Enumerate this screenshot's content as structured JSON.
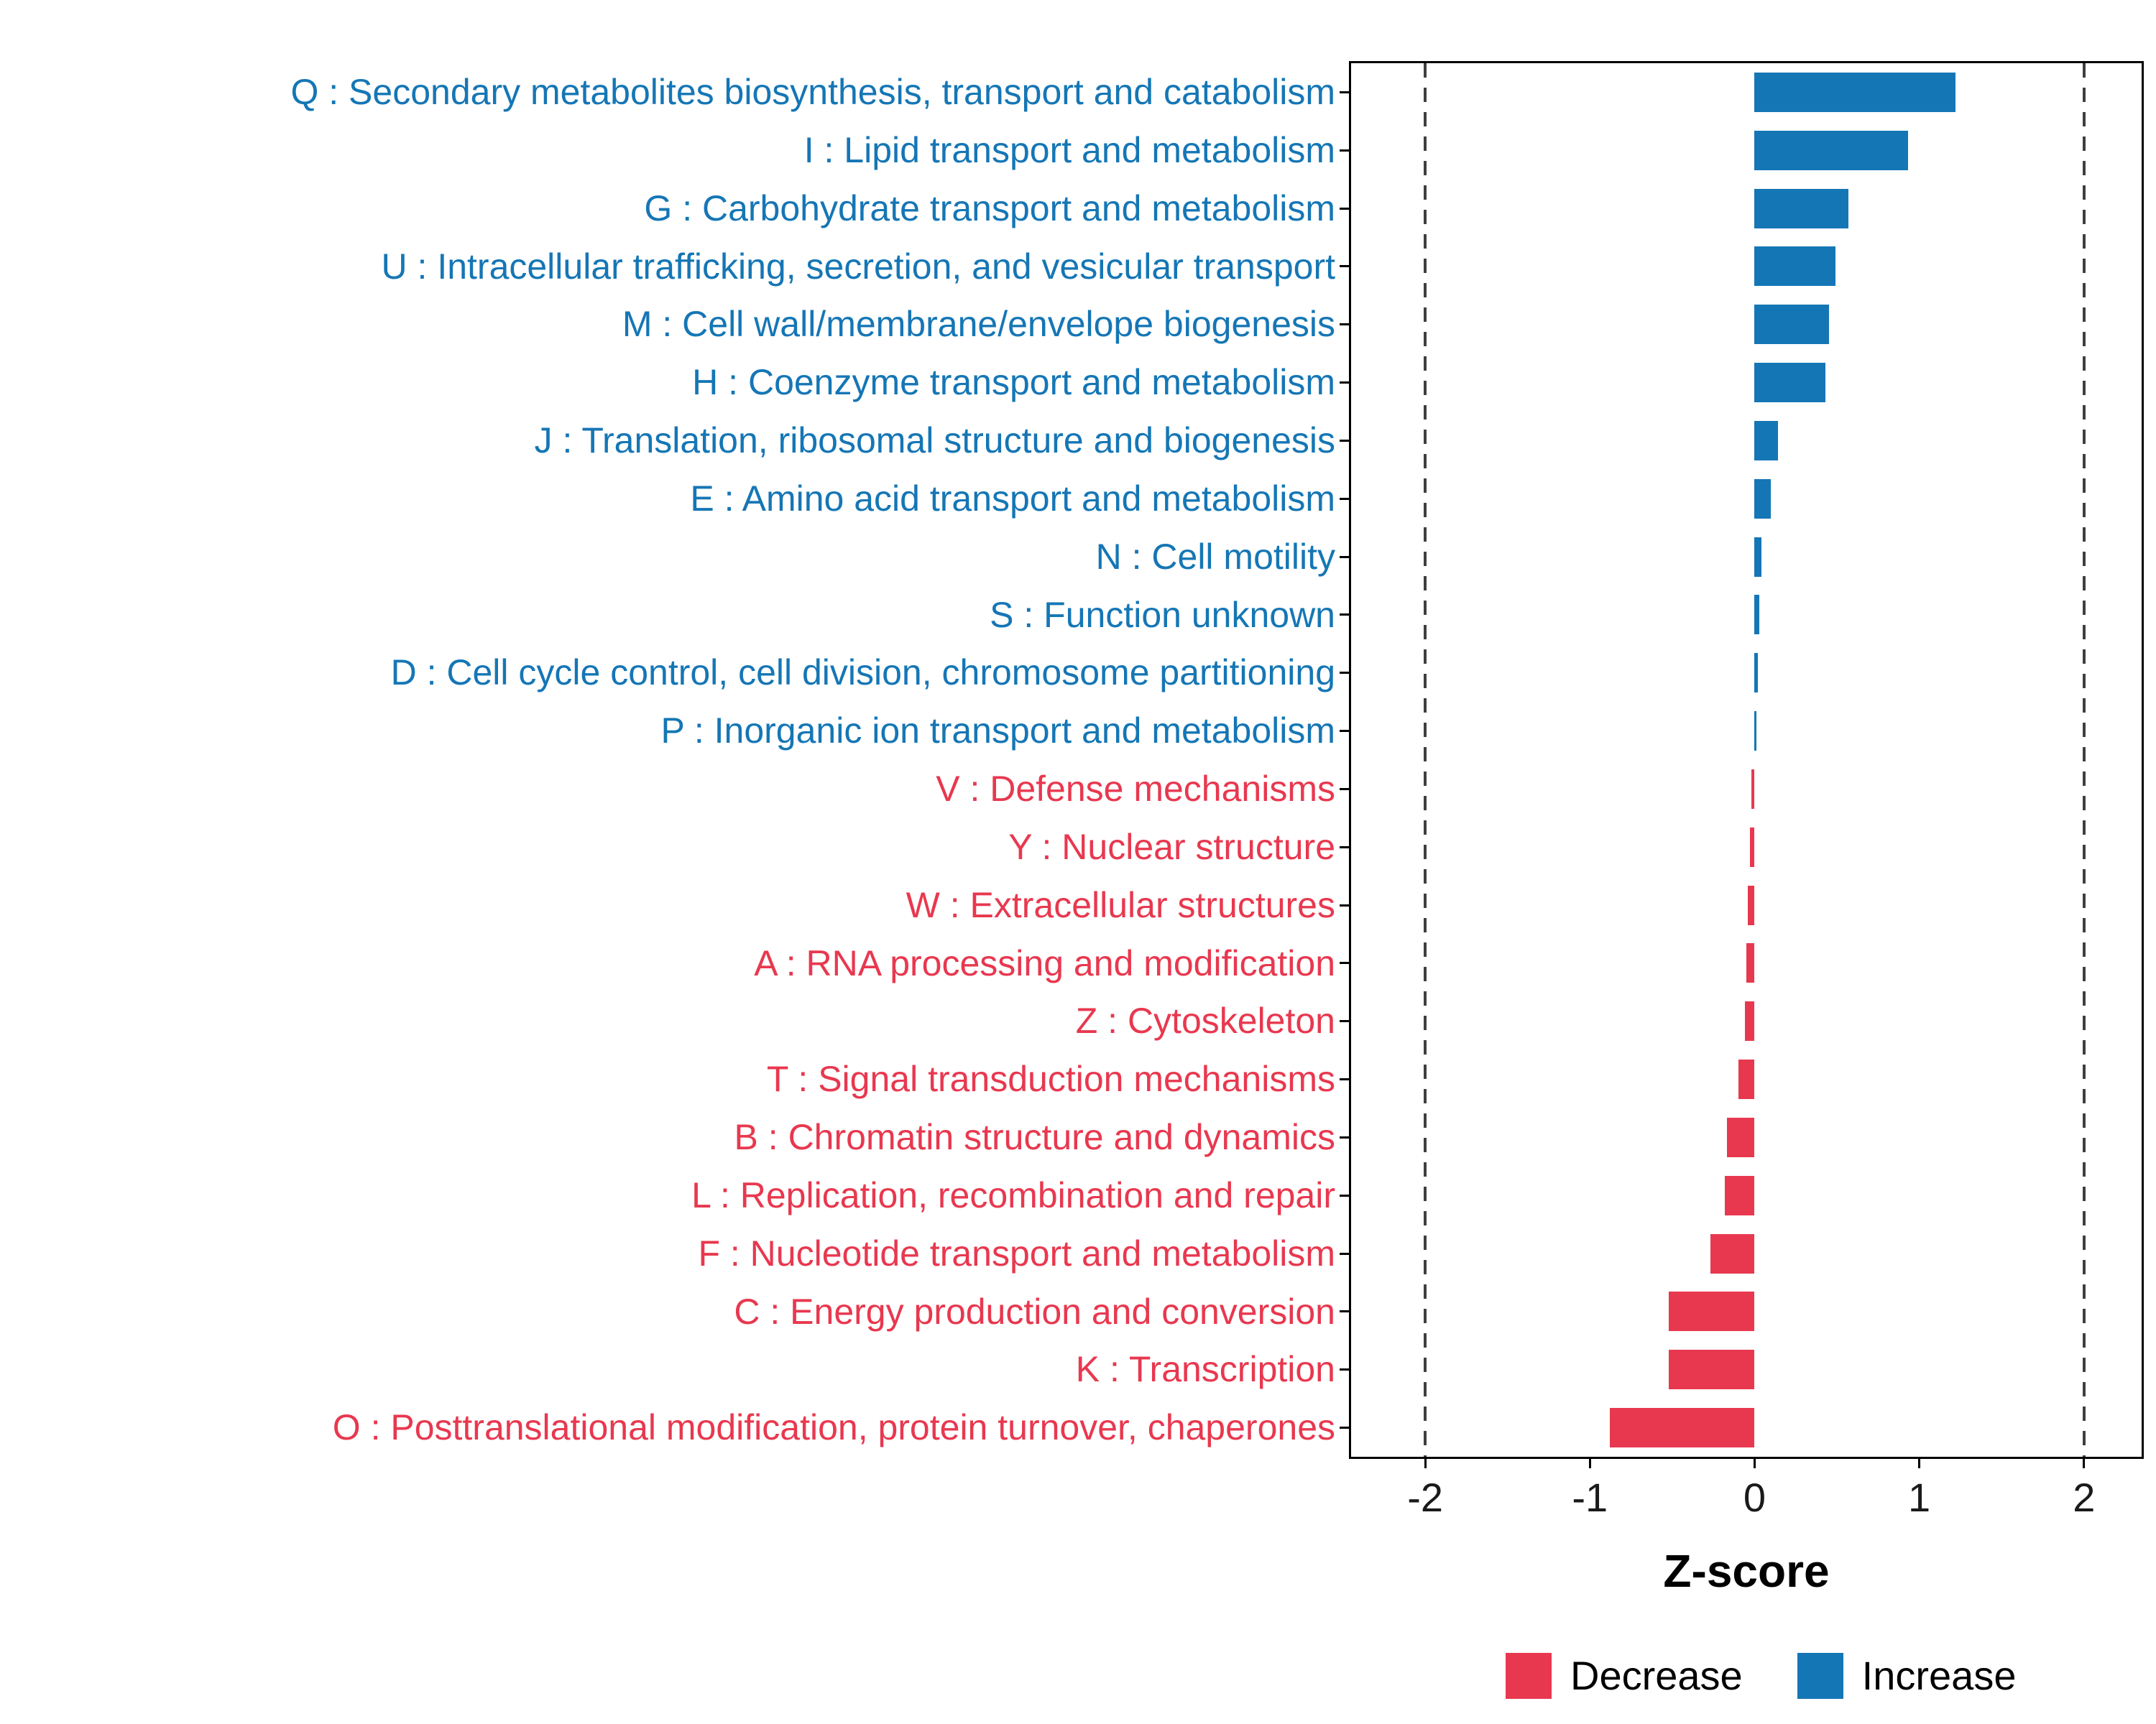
{
  "chart_data": {
    "type": "bar",
    "orientation": "horizontal",
    "title": "",
    "xlabel": "Z-score",
    "ylabel": "",
    "xlim": [
      -2.45,
      2.35
    ],
    "x_ticks": [
      -2,
      -1,
      0,
      1,
      2
    ],
    "x_tick_labels": [
      "-2",
      "-1",
      "0",
      "1",
      "2"
    ],
    "dashed_lines": [
      -2,
      2
    ],
    "grid": false,
    "legend_position": "bottom-right",
    "colors": {
      "Increase": "#1576b5",
      "Decrease": "#e8384f"
    },
    "legend": [
      {
        "label": "Decrease",
        "group": "Decrease"
      },
      {
        "label": "Increase",
        "group": "Increase"
      }
    ],
    "bars": [
      {
        "label": "Q : Secondary metabolites biosynthesis, transport and catabolism",
        "value": 1.22,
        "group": "Increase"
      },
      {
        "label": "I : Lipid transport and metabolism",
        "value": 0.93,
        "group": "Increase"
      },
      {
        "label": "G : Carbohydrate transport and metabolism",
        "value": 0.57,
        "group": "Increase"
      },
      {
        "label": "U : Intracellular trafficking, secretion, and vesicular transport",
        "value": 0.49,
        "group": "Increase"
      },
      {
        "label": "M : Cell wall/membrane/envelope biogenesis",
        "value": 0.45,
        "group": "Increase"
      },
      {
        "label": "H : Coenzyme transport and metabolism",
        "value": 0.43,
        "group": "Increase"
      },
      {
        "label": "J : Translation, ribosomal structure and biogenesis",
        "value": 0.14,
        "group": "Increase"
      },
      {
        "label": "E : Amino acid transport and metabolism",
        "value": 0.1,
        "group": "Increase"
      },
      {
        "label": "N : Cell motility",
        "value": 0.04,
        "group": "Increase"
      },
      {
        "label": "S : Function unknown",
        "value": 0.03,
        "group": "Increase"
      },
      {
        "label": "D : Cell cycle control, cell division, chromosome partitioning",
        "value": 0.02,
        "group": "Increase"
      },
      {
        "label": "P : Inorganic ion transport and metabolism",
        "value": 0.01,
        "group": "Increase"
      },
      {
        "label": "V : Defense mechanisms",
        "value": -0.02,
        "group": "Decrease"
      },
      {
        "label": "Y : Nuclear structure",
        "value": -0.03,
        "group": "Decrease"
      },
      {
        "label": "W : Extracellular structures",
        "value": -0.04,
        "group": "Decrease"
      },
      {
        "label": "A : RNA processing and modification",
        "value": -0.05,
        "group": "Decrease"
      },
      {
        "label": "Z : Cytoskeleton",
        "value": -0.06,
        "group": "Decrease"
      },
      {
        "label": "T : Signal transduction mechanisms",
        "value": -0.1,
        "group": "Decrease"
      },
      {
        "label": "B : Chromatin structure and dynamics",
        "value": -0.17,
        "group": "Decrease"
      },
      {
        "label": "L : Replication, recombination and repair",
        "value": -0.18,
        "group": "Decrease"
      },
      {
        "label": "F : Nucleotide transport and metabolism",
        "value": -0.27,
        "group": "Decrease"
      },
      {
        "label": "C : Energy production and conversion",
        "value": -0.52,
        "group": "Decrease"
      },
      {
        "label": "K : Transcription",
        "value": -0.52,
        "group": "Decrease"
      },
      {
        "label": "O : Posttranslational modification, protein turnover, chaperones",
        "value": -0.88,
        "group": "Decrease"
      }
    ]
  }
}
